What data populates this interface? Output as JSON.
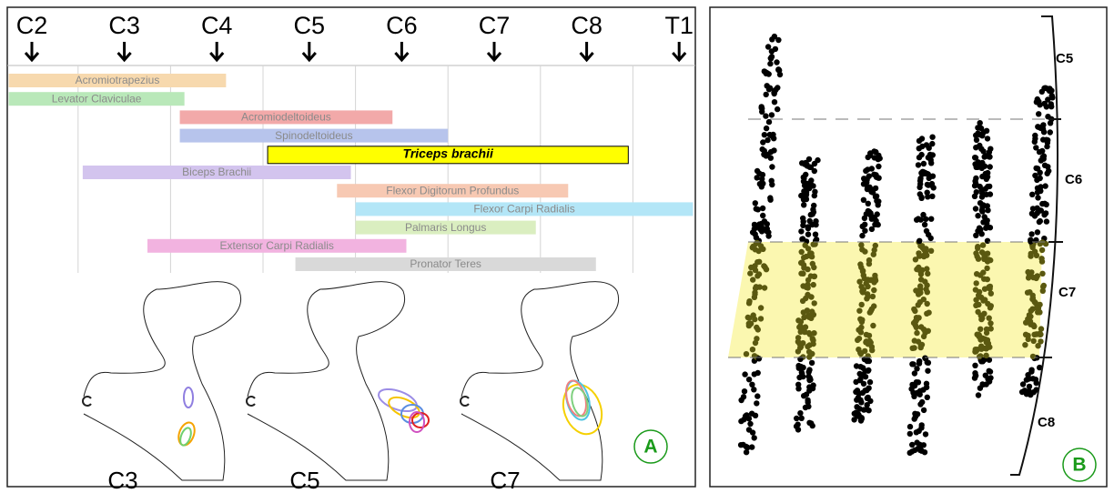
{
  "panel_a": {
    "segments": [
      "C2",
      "C3",
      "C4",
      "C5",
      "C6",
      "C7",
      "C8",
      "T1"
    ],
    "muscles": [
      {
        "name": "Acromiotrapezius",
        "start": -0.25,
        "end": 2.1,
        "color": "#f7d9ae"
      },
      {
        "name": "Levator Claviculae",
        "start": -0.25,
        "end": 1.65,
        "color": "#b9e8b9"
      },
      {
        "name": "Acromiodeltoideus",
        "start": 1.6,
        "end": 3.9,
        "color": "#f2a9a9"
      },
      {
        "name": "Spinodeltoideus",
        "start": 1.6,
        "end": 4.5,
        "color": "#b7c4ec"
      },
      {
        "name": "Triceps brachii",
        "start": 2.55,
        "end": 6.45,
        "color": "#ffff00",
        "highlight": true
      },
      {
        "name": "Biceps Brachii",
        "start": 0.55,
        "end": 3.45,
        "color": "#d3c4ee"
      },
      {
        "name": "Flexor Digitorum Profundus",
        "start": 3.3,
        "end": 5.8,
        "color": "#f7c9b3"
      },
      {
        "name": "Flexor Carpi Radialis",
        "start": 3.5,
        "end": 7.15,
        "color": "#b3e6f7"
      },
      {
        "name": "Palmaris Longus",
        "start": 3.5,
        "end": 5.45,
        "color": "#daeec0"
      },
      {
        "name": "Extensor Carpi Radialis",
        "start": 1.25,
        "end": 4.05,
        "color": "#f2b3e0"
      },
      {
        "name": "Pronator Teres",
        "start": 2.85,
        "end": 6.1,
        "color": "#d9d9d9"
      }
    ],
    "sections": [
      "C3",
      "C5",
      "C7"
    ],
    "label": "A"
  },
  "panel_b": {
    "segments": [
      "C5",
      "C6",
      "C7",
      "C8"
    ],
    "label": "B"
  }
}
